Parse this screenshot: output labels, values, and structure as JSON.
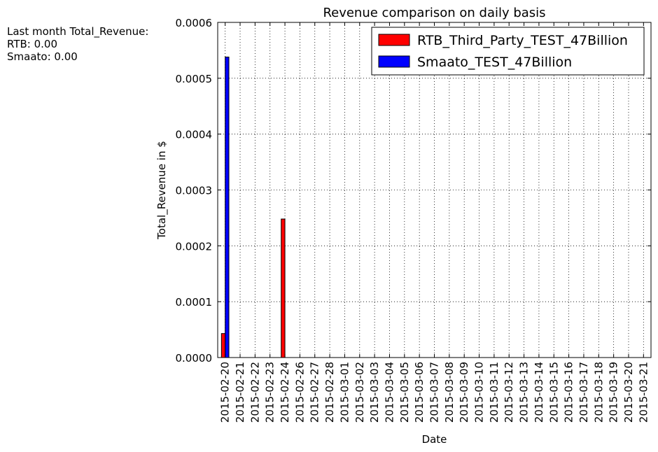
{
  "summary": {
    "heading": "Last month Total_Revenue:",
    "lines": [
      "RTB: 0.00",
      "Smaato: 0.00"
    ]
  },
  "chart_data": {
    "type": "bar",
    "title": "Revenue comparison on daily basis",
    "xlabel": "Date",
    "ylabel": "Total_Revenue in $",
    "ylim": [
      0,
      0.0006
    ],
    "yticks": [
      "0.0000",
      "0.0001",
      "0.0002",
      "0.0003",
      "0.0004",
      "0.0005",
      "0.0006"
    ],
    "grid": true,
    "legend_position": "top-right",
    "categories": [
      "2015-02-20",
      "2015-02-21",
      "2015-02-22",
      "2015-02-23",
      "2015-02-24",
      "2015-02-26",
      "2015-02-27",
      "2015-02-28",
      "2015-03-01",
      "2015-03-02",
      "2015-03-03",
      "2015-03-04",
      "2015-03-05",
      "2015-03-06",
      "2015-03-07",
      "2015-03-08",
      "2015-03-09",
      "2015-03-10",
      "2015-03-11",
      "2015-03-12",
      "2015-03-13",
      "2015-03-14",
      "2015-03-15",
      "2015-03-16",
      "2015-03-17",
      "2015-03-18",
      "2015-03-19",
      "2015-03-20",
      "2015-03-21"
    ],
    "series": [
      {
        "name": "RTB_Third_Party_TEST_47Billion",
        "color": "#ff0000",
        "values": [
          4.3e-05,
          0,
          0,
          0,
          0.000248,
          0,
          0,
          0,
          0,
          0,
          0,
          0,
          0,
          0,
          0,
          0,
          0,
          0,
          0,
          0,
          0,
          0,
          0,
          0,
          0,
          0,
          0,
          0,
          0
        ]
      },
      {
        "name": "Smaato_TEST_47Billion",
        "color": "#0000ff",
        "values": [
          0.000538,
          0,
          0,
          0,
          0,
          0,
          0,
          0,
          0,
          0,
          0,
          0,
          0,
          0,
          0,
          0,
          0,
          0,
          0,
          0,
          0,
          0,
          0,
          0,
          0,
          0,
          0,
          0,
          0
        ]
      }
    ]
  }
}
